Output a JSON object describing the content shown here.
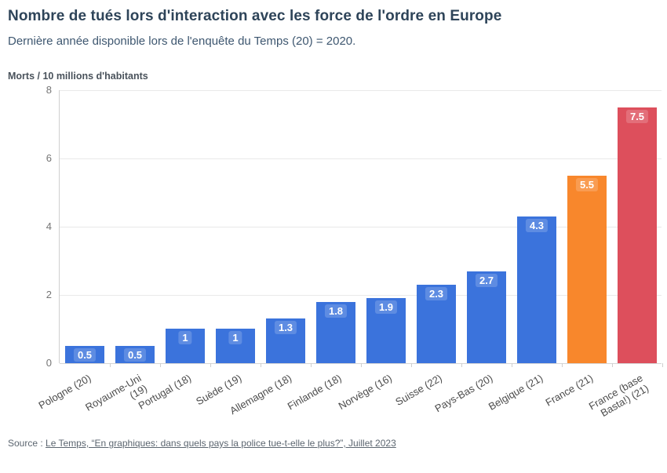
{
  "header": {
    "title": "Nombre de tués lors d'interaction avec les force de l'ordre en Europe",
    "subtitle": "Dernière année disponible lors de l'enquête du Temps (20) = 2020."
  },
  "chart_data": {
    "type": "bar",
    "title": "Nombre de tués lors d'interaction avec les force de l'ordre en Europe",
    "subtitle": "Dernière année disponible lors de l'enquête du Temps (20) = 2020.",
    "ylabel": "Morts / 10 millions d'habitants",
    "xlabel": "",
    "ylim": [
      0,
      8
    ],
    "yticks": [
      0,
      2,
      4,
      6,
      8
    ],
    "grid": true,
    "legend": "none",
    "default_color": "#3b73dc",
    "highlight_colors": {
      "orange": "#f8872c",
      "red": "#dd4f5c"
    },
    "categories": [
      "Pologne (20)",
      "Royaume-Uni (19)",
      "Portugal (18)",
      "Suède (19)",
      "Allemagne (18)",
      "Finlande (18)",
      "Norvège (16)",
      "Suisse (22)",
      "Pays-Bas (20)",
      "Belgique (21)",
      "France (21)",
      "France (base Basta!) (21)"
    ],
    "values": [
      0.5,
      0.5,
      1,
      1,
      1.3,
      1.8,
      1.9,
      2.3,
      2.7,
      4.3,
      5.5,
      7.5
    ],
    "bars": [
      {
        "label": "Pologne (20)",
        "lines": [
          "Pologne (20)"
        ],
        "value": 0.5,
        "display": "0.5",
        "color": "#3b73dc"
      },
      {
        "label": "Royaume-Uni (19)",
        "lines": [
          "Royaume-Uni",
          "(19)"
        ],
        "value": 0.5,
        "display": "0.5",
        "color": "#3b73dc"
      },
      {
        "label": "Portugal (18)",
        "lines": [
          "Portugal (18)"
        ],
        "value": 1,
        "display": "1",
        "color": "#3b73dc"
      },
      {
        "label": "Suède (19)",
        "lines": [
          "Suède (19)"
        ],
        "value": 1,
        "display": "1",
        "color": "#3b73dc"
      },
      {
        "label": "Allemagne (18)",
        "lines": [
          "Allemagne (18)"
        ],
        "value": 1.3,
        "display": "1.3",
        "color": "#3b73dc"
      },
      {
        "label": "Finlande (18)",
        "lines": [
          "Finlande (18)"
        ],
        "value": 1.8,
        "display": "1.8",
        "color": "#3b73dc"
      },
      {
        "label": "Norvège (16)",
        "lines": [
          "Norvège (16)"
        ],
        "value": 1.9,
        "display": "1.9",
        "color": "#3b73dc"
      },
      {
        "label": "Suisse (22)",
        "lines": [
          "Suisse (22)"
        ],
        "value": 2.3,
        "display": "2.3",
        "color": "#3b73dc"
      },
      {
        "label": "Pays-Bas (20)",
        "lines": [
          "Pays-Bas (20)"
        ],
        "value": 2.7,
        "display": "2.7",
        "color": "#3b73dc"
      },
      {
        "label": "Belgique (21)",
        "lines": [
          "Belgique (21)"
        ],
        "value": 4.3,
        "display": "4.3",
        "color": "#3b73dc"
      },
      {
        "label": "France (21)",
        "lines": [
          "France (21)"
        ],
        "value": 5.5,
        "display": "5.5",
        "color": "#f8872c"
      },
      {
        "label": "France (base Basta!) (21)",
        "lines": [
          "France (base",
          "Basta!) (21)"
        ],
        "value": 7.5,
        "display": "7.5",
        "color": "#dd4f5c"
      }
    ]
  },
  "source": {
    "prefix": "Source : ",
    "link_text": "Le Temps, “En graphiques: dans quels pays la police tue-t-elle le plus?”, Juillet 2023"
  }
}
